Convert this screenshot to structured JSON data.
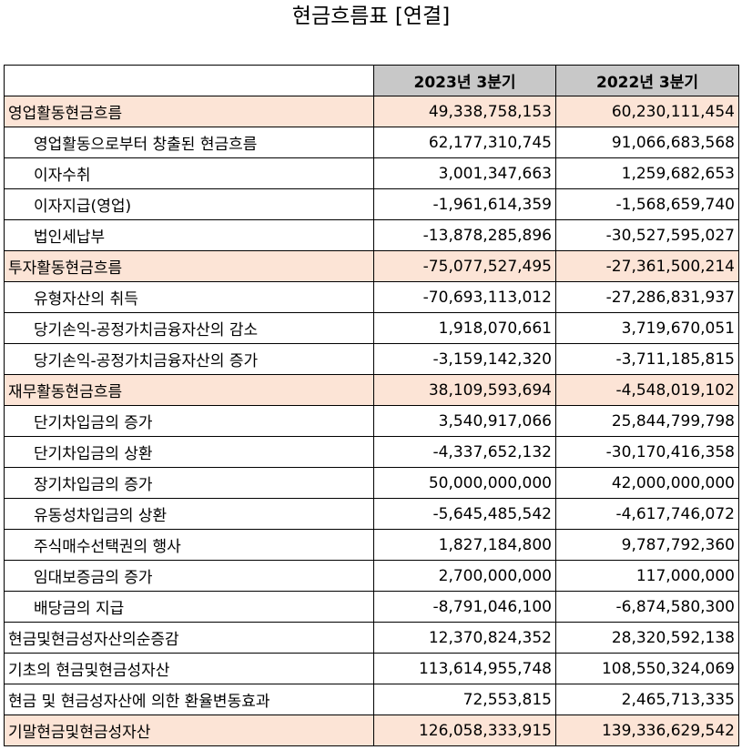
{
  "title": "현금흐름표 [연결]",
  "columns": [
    "",
    "2023년 3분기",
    "2022년 3분기"
  ],
  "rows": [
    {
      "label": "영업활동현금흐름",
      "v2023": "49,338,758,153",
      "v2022": "60,230,111,454",
      "kind": "section"
    },
    {
      "label": "영업활동으로부터 창출된 현금흐름",
      "v2023": "62,177,310,745",
      "v2022": "91,066,683,568",
      "kind": "sub"
    },
    {
      "label": "이자수취",
      "v2023": "3,001,347,663",
      "v2022": "1,259,682,653",
      "kind": "sub"
    },
    {
      "label": "이자지급(영업)",
      "v2023": "-1,961,614,359",
      "v2022": "-1,568,659,740",
      "kind": "sub"
    },
    {
      "label": "법인세납부",
      "v2023": "-13,878,285,896",
      "v2022": "-30,527,595,027",
      "kind": "sub"
    },
    {
      "label": "투자활동현금흐름",
      "v2023": "-75,077,527,495",
      "v2022": "-27,361,500,214",
      "kind": "section"
    },
    {
      "label": "유형자산의 취득",
      "v2023": "-70,693,113,012",
      "v2022": "-27,286,831,937",
      "kind": "sub"
    },
    {
      "label": "당기손익-공정가치금융자산의 감소",
      "v2023": "1,918,070,661",
      "v2022": "3,719,670,051",
      "kind": "sub"
    },
    {
      "label": "당기손익-공정가치금융자산의 증가",
      "v2023": "-3,159,142,320",
      "v2022": "-3,711,185,815",
      "kind": "sub"
    },
    {
      "label": "재무활동현금흐름",
      "v2023": "38,109,593,694",
      "v2022": "-4,548,019,102",
      "kind": "section"
    },
    {
      "label": "단기차입금의 증가",
      "v2023": "3,540,917,066",
      "v2022": "25,844,799,798",
      "kind": "sub"
    },
    {
      "label": "단기차입금의 상환",
      "v2023": "-4,337,652,132",
      "v2022": "-30,170,416,358",
      "kind": "sub"
    },
    {
      "label": "장기차입금의 증가",
      "v2023": "50,000,000,000",
      "v2022": "42,000,000,000",
      "kind": "sub"
    },
    {
      "label": "유동성차입금의 상환",
      "v2023": "-5,645,485,542",
      "v2022": "-4,617,746,072",
      "kind": "sub"
    },
    {
      "label": "주식매수선택권의 행사",
      "v2023": "1,827,184,800",
      "v2022": "9,787,792,360",
      "kind": "sub"
    },
    {
      "label": "임대보증금의 증가",
      "v2023": "2,700,000,000",
      "v2022": "117,000,000",
      "kind": "sub"
    },
    {
      "label": "배당금의 지급",
      "v2023": "-8,791,046,100",
      "v2022": "-6,874,580,300",
      "kind": "sub"
    },
    {
      "label": "현금및현금성자산의순증감",
      "v2023": "12,370,824,352",
      "v2022": "28,320,592,138",
      "kind": "plain"
    },
    {
      "label": "기초의 현금및현금성자산",
      "v2023": "113,614,955,748",
      "v2022": "108,550,324,069",
      "kind": "plain"
    },
    {
      "label": "현금 및 현금성자산에 의한 환율변동효과",
      "v2023": "72,553,815",
      "v2022": "2,465,713,335",
      "kind": "plain"
    },
    {
      "label": "기말현금및현금성자산",
      "v2023": "126,058,333,915",
      "v2022": "139,336,629,542",
      "kind": "total"
    }
  ],
  "colors": {
    "header_bg": "#c8c8c8",
    "highlight_bg": "#fce4d6",
    "border": "#000000"
  }
}
